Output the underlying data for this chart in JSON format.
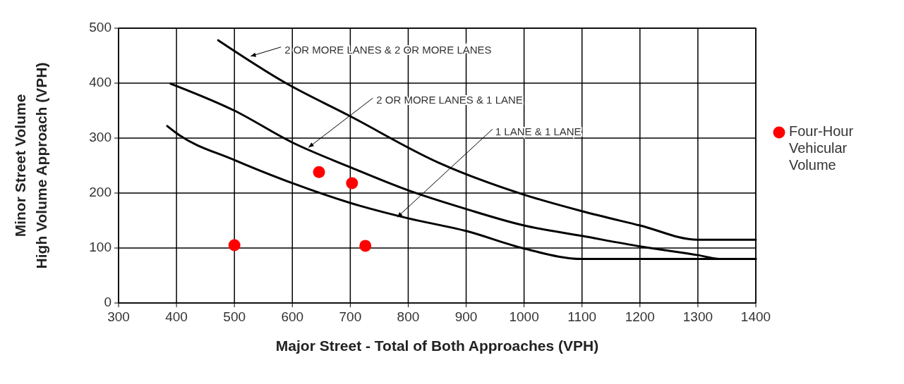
{
  "chart_data": {
    "type": "line",
    "xlabel": "Major Street - Total of Both Approaches (VPH)",
    "ylabel": "Minor Street Volume\nHigh Volume Approach (VPH)",
    "xlim": [
      300,
      1400
    ],
    "xticks": [
      300,
      400,
      500,
      600,
      700,
      800,
      900,
      1000,
      1100,
      1200,
      1300,
      1400
    ],
    "ylim": [
      0,
      500
    ],
    "yticks": [
      0,
      100,
      200,
      300,
      400,
      500
    ],
    "grid": true,
    "legend": "right",
    "line_style": "solid",
    "annotations": [
      {
        "text": "2 OR MORE LANES & 2 OR MORE LANES",
        "x": 528,
        "y": 449
      },
      {
        "text": "2 OR MORE LANES & 1 LANE",
        "x": 628,
        "y": 283
      },
      {
        "text": "1 LANE & 1 LANE",
        "x": 781,
        "y": 156
      }
    ],
    "series": [
      {
        "type": "line",
        "marker": "none",
        "color": "#000000",
        "x": [
          472,
          589,
          696,
          851,
          1000,
          1100,
          1200,
          1300,
          1400
        ],
        "values": [
          478,
          400,
          342,
          256,
          197,
          167,
          141,
          115,
          115
        ]
      },
      {
        "type": "line",
        "marker": "none",
        "color": "#000000",
        "x": [
          390,
          500,
          600,
          700,
          800,
          900,
          1000,
          1100,
          1200,
          1300,
          1340,
          1400
        ],
        "values": [
          399,
          350,
          292,
          247,
          205,
          171,
          141,
          122,
          103,
          87,
          80,
          80
        ]
      },
      {
        "marker": "none",
        "color": "#000000",
        "x": [
          384,
          400,
          500,
          600,
          700,
          800,
          900,
          1000,
          1100,
          1400
        ],
        "values": [
          322,
          309,
          260,
          218,
          182,
          154,
          131,
          99,
          80,
          80
        ]
      },
      {
        "name": "Four-Hour Vehicular Volume",
        "type": "scatter",
        "marker": "circle",
        "color": "#ff0000",
        "x": [
          500,
          646,
          703,
          726
        ],
        "values": [
          105,
          238,
          218,
          104
        ]
      }
    ]
  }
}
